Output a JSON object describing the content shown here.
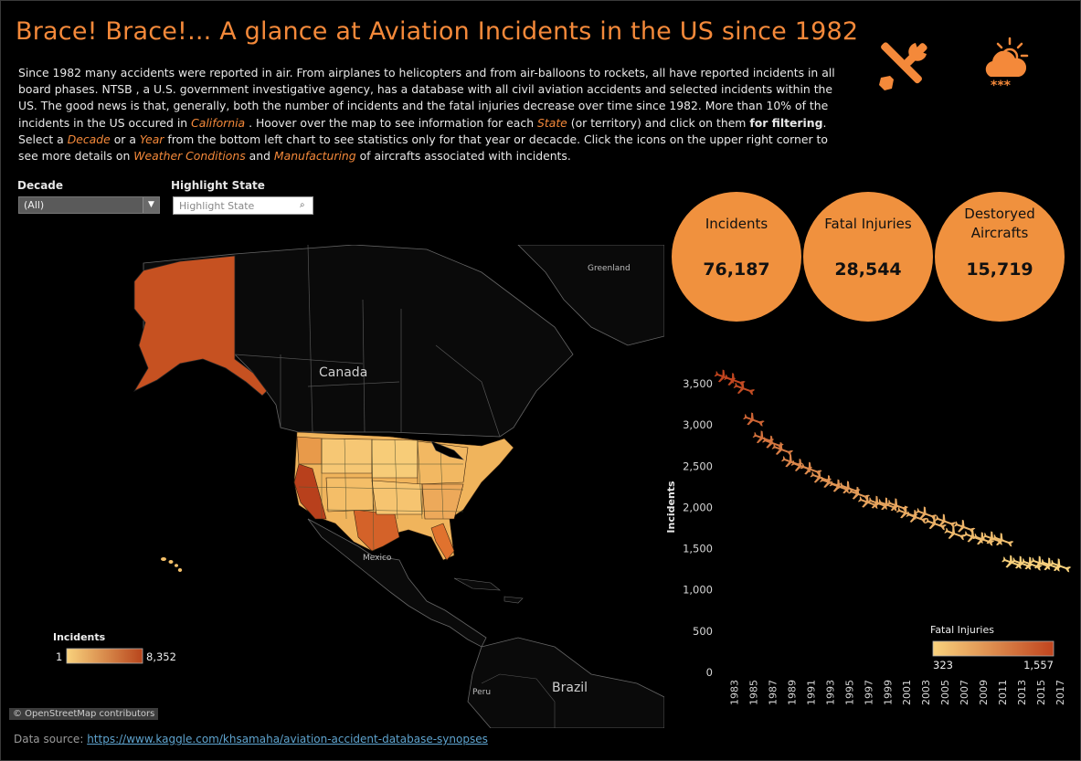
{
  "header": {
    "title": "Brace! Brace!... A glance at Aviation Incidents in the US since 1982",
    "intro": {
      "p1": "Since 1982 many accidents were reported in air.  From airplanes to helicopters and from air-balloons to rockets, all have reported incidents in all board phases. NTSB , a U.S. government investigative agency, has a database with all civil aviation accidents and selected incidents within the US. The good news is that, generally, both the number of incidents and the fatal injuries decrease over time since 1982. More than 10% of the incidents in the US occured in ",
      "california": "California",
      "p2": " .  Hoover over the map to see information for each ",
      "state": "State",
      "p3": " (or territory) and click on  them ",
      "for_filtering": "for filtering",
      "p4": ".  Select a ",
      "decade": "Decade",
      "p5": " or a ",
      "year": "Year",
      "p6": " from the bottom left chart to see statistics only for that year or decacde. Click the icons on the upper right corner to see more details on ",
      "weather": "Weather Conditions",
      "p7": " and ",
      "manufacturing": "Manufacturing",
      "p8": " of aircrafts associated with incidents."
    },
    "icons": {
      "tools": "tools-icon",
      "weather": "weather-snow-cloud-icon"
    }
  },
  "filters": {
    "decade_label": "Decade",
    "decade_value": "(All)",
    "highlight_label": "Highlight State",
    "highlight_placeholder": "Highlight State"
  },
  "kpis": [
    {
      "label": "Incidents",
      "value": "76,187"
    },
    {
      "label": "Fatal Injuries",
      "value": "28,544"
    },
    {
      "label": "Destoryed Aircrafts",
      "value": "15,719"
    }
  ],
  "map": {
    "labels": {
      "canada": "Canada",
      "greenland": "Greenland",
      "mexico": "Mexico",
      "brazil": "Brazil",
      "peru": "Peru"
    },
    "legend": {
      "title": "Incidents",
      "min": "1",
      "max": "8,352"
    },
    "attribution": "© OpenStreetMap contributors",
    "colors": {
      "low": "#f9d27d",
      "high": "#b8451c"
    }
  },
  "chart_data": {
    "type": "scatter",
    "marker": "airplane",
    "ylabel": "Incidents",
    "ylim": [
      0,
      3700
    ],
    "yticks": [
      "0",
      "500",
      "1,000",
      "1,500",
      "2,000",
      "2,500",
      "3,000",
      "3,500"
    ],
    "xticks": [
      "1983",
      "1985",
      "1987",
      "1989",
      "1991",
      "1993",
      "1995",
      "1997",
      "1999",
      "2001",
      "2003",
      "2005",
      "2007",
      "2009",
      "2011",
      "2013",
      "2015",
      "2017"
    ],
    "x": [
      1982,
      1983,
      1984,
      1985,
      1986,
      1987,
      1988,
      1989,
      1990,
      1991,
      1992,
      1993,
      1994,
      1995,
      1996,
      1997,
      1998,
      1999,
      2000,
      2001,
      2002,
      2003,
      2004,
      2005,
      2006,
      2007,
      2008,
      2009,
      2010,
      2011,
      2012,
      2013,
      2014,
      2015,
      2016,
      2017
    ],
    "y": [
      3580,
      3540,
      3440,
      3060,
      2840,
      2780,
      2700,
      2550,
      2500,
      2460,
      2360,
      2300,
      2250,
      2230,
      2160,
      2060,
      2050,
      2030,
      2020,
      1930,
      1880,
      1920,
      1800,
      1830,
      1680,
      1760,
      1640,
      1610,
      1620,
      1600,
      1330,
      1320,
      1310,
      1320,
      1300,
      1290
    ],
    "legend": {
      "title": "Fatal Injuries",
      "min": "323",
      "max": "1,557"
    },
    "colors": {
      "low": "#f9d27d",
      "high": "#c0441e"
    }
  },
  "footer": {
    "source_label": "Data source: ",
    "source_link": "https://www.kaggle.com/khsamaha/aviation-accident-database-synopses"
  }
}
